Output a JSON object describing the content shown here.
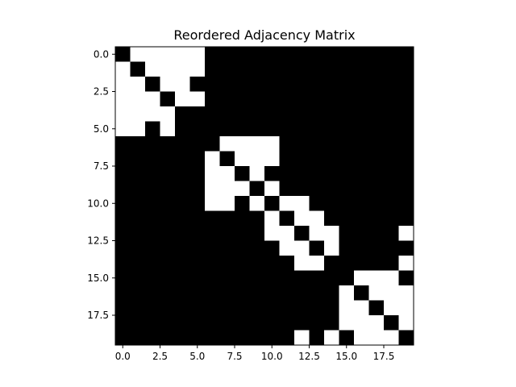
{
  "chart_data": {
    "type": "heatmap",
    "title": "Reordered Adjacency Matrix",
    "colormap": "gray",
    "colors": {
      "value_1": "#ffffff",
      "value_0": "#000000"
    },
    "size": 20,
    "x_ticks": [
      "0.0",
      "2.5",
      "5.0",
      "7.5",
      "10.0",
      "12.5",
      "15.0",
      "17.5"
    ],
    "y_ticks": [
      "0.0",
      "2.5",
      "5.0",
      "7.5",
      "10.0",
      "12.5",
      "15.0",
      "17.5"
    ],
    "tick_values": [
      0,
      2.5,
      5,
      7.5,
      10,
      12.5,
      15,
      17.5
    ],
    "xlim": [
      -0.5,
      19.5
    ],
    "ylim": [
      19.5,
      -0.5
    ],
    "grid": false,
    "legend": false,
    "matrix": [
      [
        0,
        1,
        1,
        1,
        1,
        1,
        0,
        0,
        0,
        0,
        0,
        0,
        0,
        0,
        0,
        0,
        0,
        0,
        0,
        0
      ],
      [
        1,
        0,
        1,
        1,
        1,
        1,
        0,
        0,
        0,
        0,
        0,
        0,
        0,
        0,
        0,
        0,
        0,
        0,
        0,
        0
      ],
      [
        1,
        1,
        0,
        1,
        1,
        0,
        0,
        0,
        0,
        0,
        0,
        0,
        0,
        0,
        0,
        0,
        0,
        0,
        0,
        0
      ],
      [
        1,
        1,
        1,
        0,
        1,
        1,
        0,
        0,
        0,
        0,
        0,
        0,
        0,
        0,
        0,
        0,
        0,
        0,
        0,
        0
      ],
      [
        1,
        1,
        1,
        1,
        0,
        0,
        0,
        0,
        0,
        0,
        0,
        0,
        0,
        0,
        0,
        0,
        0,
        0,
        0,
        0
      ],
      [
        1,
        1,
        0,
        1,
        0,
        0,
        0,
        0,
        0,
        0,
        0,
        0,
        0,
        0,
        0,
        0,
        0,
        0,
        0,
        0
      ],
      [
        0,
        0,
        0,
        0,
        0,
        0,
        0,
        1,
        1,
        1,
        1,
        0,
        0,
        0,
        0,
        0,
        0,
        0,
        0,
        0
      ],
      [
        0,
        0,
        0,
        0,
        0,
        0,
        1,
        0,
        1,
        1,
        1,
        0,
        0,
        0,
        0,
        0,
        0,
        0,
        0,
        0
      ],
      [
        0,
        0,
        0,
        0,
        0,
        0,
        1,
        1,
        0,
        1,
        0,
        0,
        0,
        0,
        0,
        0,
        0,
        0,
        0,
        0
      ],
      [
        0,
        0,
        0,
        0,
        0,
        0,
        1,
        1,
        1,
        0,
        1,
        0,
        0,
        0,
        0,
        0,
        0,
        0,
        0,
        0
      ],
      [
        0,
        0,
        0,
        0,
        0,
        0,
        1,
        1,
        0,
        1,
        0,
        1,
        1,
        0,
        0,
        0,
        0,
        0,
        0,
        0
      ],
      [
        0,
        0,
        0,
        0,
        0,
        0,
        0,
        0,
        0,
        0,
        1,
        0,
        1,
        1,
        0,
        0,
        0,
        0,
        0,
        0
      ],
      [
        0,
        0,
        0,
        0,
        0,
        0,
        0,
        0,
        0,
        0,
        1,
        1,
        0,
        1,
        1,
        0,
        0,
        0,
        0,
        1
      ],
      [
        0,
        0,
        0,
        0,
        0,
        0,
        0,
        0,
        0,
        0,
        0,
        1,
        1,
        0,
        1,
        0,
        0,
        0,
        0,
        0
      ],
      [
        0,
        0,
        0,
        0,
        0,
        0,
        0,
        0,
        0,
        0,
        0,
        0,
        1,
        1,
        0,
        0,
        0,
        0,
        0,
        1
      ],
      [
        0,
        0,
        0,
        0,
        0,
        0,
        0,
        0,
        0,
        0,
        0,
        0,
        0,
        0,
        0,
        0,
        1,
        1,
        1,
        0
      ],
      [
        0,
        0,
        0,
        0,
        0,
        0,
        0,
        0,
        0,
        0,
        0,
        0,
        0,
        0,
        0,
        1,
        0,
        1,
        1,
        1
      ],
      [
        0,
        0,
        0,
        0,
        0,
        0,
        0,
        0,
        0,
        0,
        0,
        0,
        0,
        0,
        0,
        1,
        1,
        0,
        1,
        1
      ],
      [
        0,
        0,
        0,
        0,
        0,
        0,
        0,
        0,
        0,
        0,
        0,
        0,
        0,
        0,
        0,
        1,
        1,
        1,
        0,
        1
      ],
      [
        0,
        0,
        0,
        0,
        0,
        0,
        0,
        0,
        0,
        0,
        0,
        0,
        1,
        0,
        1,
        0,
        1,
        1,
        1,
        0
      ]
    ]
  }
}
